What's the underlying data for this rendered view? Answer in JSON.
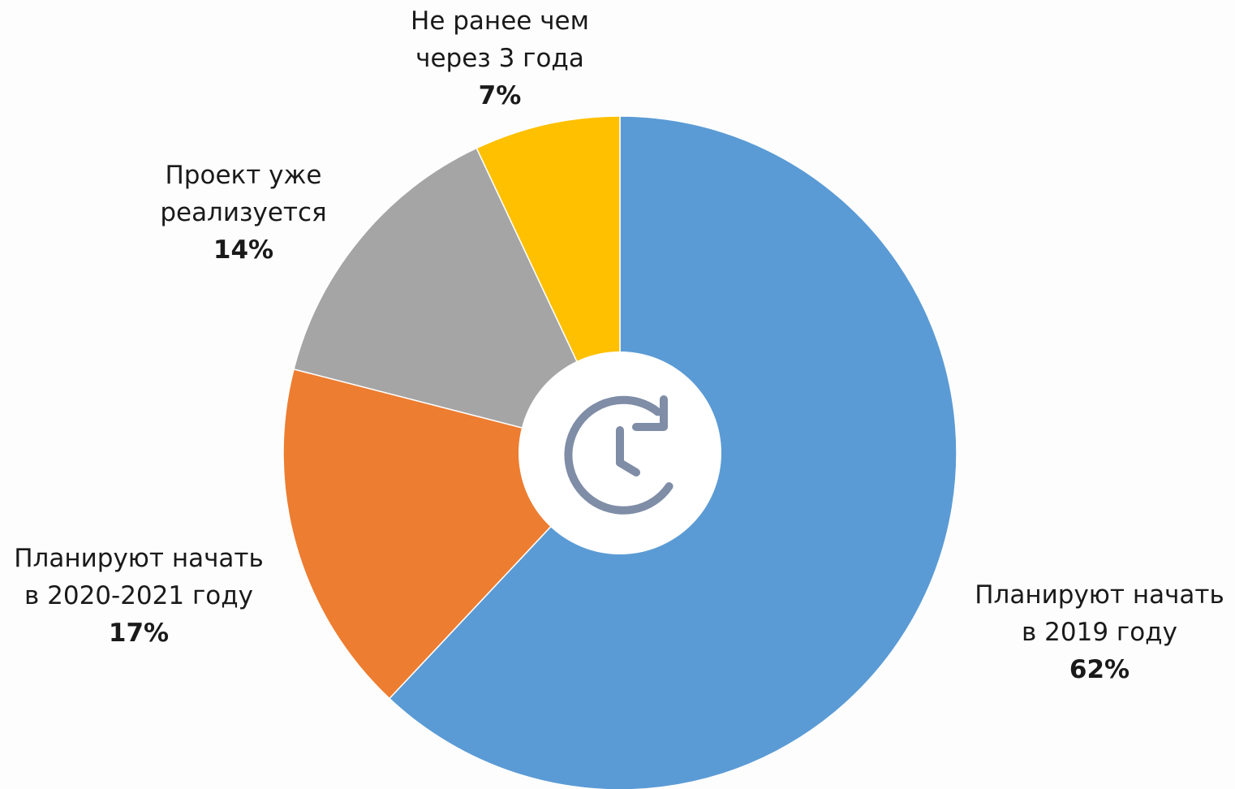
{
  "chart_data": {
    "type": "pie",
    "style": "donut",
    "center_icon": "clock-refresh-icon",
    "start_angle_deg": 0,
    "direction": "clockwise",
    "slices": [
      {
        "label_lines": [
          "Планируют начать",
          "в 2019 году"
        ],
        "value": 62,
        "value_label": "62%",
        "color": "#5b9bd5"
      },
      {
        "label_lines": [
          "Планируют начать",
          "в 2020-2021 году"
        ],
        "value": 17,
        "value_label": "17%",
        "color": "#ed7d31"
      },
      {
        "label_lines": [
          "Проект уже",
          "реализуется"
        ],
        "value": 14,
        "value_label": "14%",
        "color": "#a5a5a5"
      },
      {
        "label_lines": [
          "Не ранее чем",
          "через 3 года"
        ],
        "value": 7,
        "value_label": "7%",
        "color": "#ffc000"
      }
    ],
    "icon_color": "#7f8da6"
  }
}
